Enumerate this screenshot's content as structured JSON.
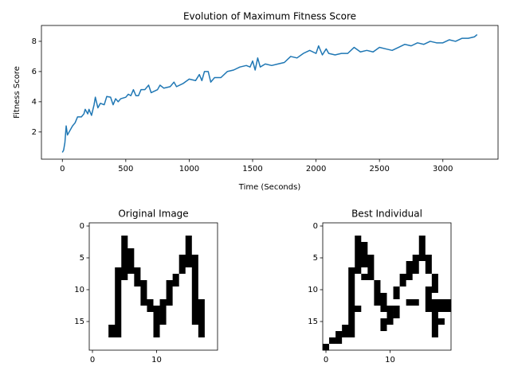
{
  "chart_data": [
    {
      "type": "line",
      "title": "Evolution of Maximum Fitness Score",
      "xlabel": "Time (Seconds)",
      "ylabel": "Fitness Score",
      "color": "#1f77b4",
      "x": [
        0,
        10,
        20,
        30,
        40,
        60,
        80,
        100,
        120,
        150,
        170,
        180,
        200,
        210,
        230,
        250,
        260,
        280,
        300,
        330,
        350,
        380,
        400,
        420,
        440,
        460,
        500,
        520,
        540,
        560,
        580,
        600,
        620,
        650,
        680,
        700,
        750,
        770,
        800,
        850,
        880,
        900,
        950,
        1000,
        1050,
        1080,
        1100,
        1120,
        1150,
        1170,
        1200,
        1250,
        1300,
        1350,
        1400,
        1450,
        1480,
        1500,
        1520,
        1540,
        1560,
        1600,
        1650,
        1700,
        1750,
        1800,
        1850,
        1900,
        1950,
        2000,
        2020,
        2050,
        2080,
        2100,
        2150,
        2200,
        2250,
        2300,
        2350,
        2400,
        2450,
        2500,
        2550,
        2600,
        2650,
        2700,
        2750,
        2800,
        2850,
        2900,
        2950,
        3000,
        3050,
        3100,
        3150,
        3200,
        3250,
        3270
      ],
      "values": [
        0.65,
        0.8,
        1.3,
        2.4,
        1.8,
        2.1,
        2.4,
        2.6,
        3.0,
        3.0,
        3.2,
        3.5,
        3.2,
        3.5,
        3.1,
        3.8,
        4.3,
        3.6,
        3.9,
        3.8,
        4.35,
        4.3,
        3.8,
        4.2,
        4.0,
        4.2,
        4.3,
        4.5,
        4.4,
        4.8,
        4.4,
        4.4,
        4.8,
        4.8,
        5.1,
        4.6,
        4.8,
        5.1,
        4.9,
        5.0,
        5.3,
        5.0,
        5.2,
        5.5,
        5.4,
        5.8,
        5.4,
        6.0,
        6.0,
        5.3,
        5.6,
        5.6,
        6.0,
        6.1,
        6.3,
        6.4,
        6.3,
        6.7,
        6.1,
        6.9,
        6.3,
        6.5,
        6.4,
        6.5,
        6.6,
        7.0,
        6.9,
        7.2,
        7.4,
        7.2,
        7.7,
        7.1,
        7.5,
        7.2,
        7.1,
        7.2,
        7.2,
        7.6,
        7.3,
        7.4,
        7.3,
        7.6,
        7.5,
        7.4,
        7.6,
        7.8,
        7.7,
        7.9,
        7.8,
        8.0,
        7.9,
        7.9,
        8.1,
        8.0,
        8.2,
        8.2,
        8.3,
        8.45
      ],
      "xlim": [
        -165,
        3435
      ],
      "ylim": [
        0.2,
        9.05
      ],
      "xticks": [
        0,
        500,
        1000,
        1500,
        2000,
        2500,
        3000
      ],
      "yticks": [
        2,
        4,
        6,
        8
      ]
    },
    {
      "type": "image",
      "title": "Original Image",
      "color": "#000000",
      "xlim": [
        -0.5,
        19.5
      ],
      "ylim": [
        19.5,
        -0.5
      ],
      "xticks": [
        0,
        10
      ],
      "yticks": [
        0,
        5,
        10,
        15
      ],
      "pixels": [
        [
          0,
          0,
          0,
          0,
          0,
          0,
          0,
          0,
          0,
          0,
          0,
          0,
          0,
          0,
          0,
          0,
          0,
          0,
          0,
          0
        ],
        [
          0,
          0,
          0,
          0,
          0,
          0,
          0,
          0,
          0,
          0,
          0,
          0,
          0,
          0,
          0,
          0,
          0,
          0,
          0,
          0
        ],
        [
          0,
          0,
          0,
          0,
          0,
          1,
          0,
          0,
          0,
          0,
          0,
          0,
          0,
          0,
          0,
          1,
          0,
          0,
          0,
          0
        ],
        [
          0,
          0,
          0,
          0,
          0,
          1,
          0,
          0,
          0,
          0,
          0,
          0,
          0,
          0,
          0,
          1,
          0,
          0,
          0,
          0
        ],
        [
          0,
          0,
          0,
          0,
          0,
          1,
          1,
          0,
          0,
          0,
          0,
          0,
          0,
          0,
          0,
          1,
          0,
          0,
          0,
          0
        ],
        [
          0,
          0,
          0,
          0,
          0,
          1,
          1,
          0,
          0,
          0,
          0,
          0,
          0,
          0,
          1,
          1,
          1,
          0,
          0,
          0
        ],
        [
          0,
          0,
          0,
          0,
          0,
          1,
          1,
          0,
          0,
          0,
          0,
          0,
          0,
          0,
          1,
          1,
          1,
          0,
          0,
          0
        ],
        [
          0,
          0,
          0,
          0,
          1,
          1,
          1,
          1,
          0,
          0,
          0,
          0,
          0,
          0,
          1,
          0,
          1,
          0,
          0,
          0
        ],
        [
          0,
          0,
          0,
          0,
          1,
          1,
          0,
          1,
          0,
          0,
          0,
          0,
          0,
          1,
          0,
          0,
          1,
          0,
          0,
          0
        ],
        [
          0,
          0,
          0,
          0,
          1,
          0,
          0,
          1,
          1,
          0,
          0,
          0,
          1,
          1,
          0,
          0,
          1,
          0,
          0,
          0
        ],
        [
          0,
          0,
          0,
          0,
          1,
          0,
          0,
          0,
          1,
          0,
          0,
          0,
          1,
          0,
          0,
          0,
          1,
          0,
          0,
          0
        ],
        [
          0,
          0,
          0,
          0,
          1,
          0,
          0,
          0,
          1,
          0,
          0,
          0,
          1,
          0,
          0,
          0,
          1,
          0,
          0,
          0
        ],
        [
          0,
          0,
          0,
          0,
          1,
          0,
          0,
          0,
          1,
          1,
          0,
          1,
          1,
          0,
          0,
          0,
          1,
          1,
          0,
          0
        ],
        [
          0,
          0,
          0,
          0,
          1,
          0,
          0,
          0,
          0,
          1,
          1,
          1,
          0,
          0,
          0,
          0,
          1,
          1,
          0,
          0
        ],
        [
          0,
          0,
          0,
          0,
          1,
          0,
          0,
          0,
          0,
          0,
          1,
          1,
          0,
          0,
          0,
          0,
          1,
          1,
          0,
          0
        ],
        [
          0,
          0,
          0,
          0,
          1,
          0,
          0,
          0,
          0,
          0,
          1,
          1,
          0,
          0,
          0,
          0,
          1,
          1,
          0,
          0
        ],
        [
          0,
          0,
          0,
          1,
          1,
          0,
          0,
          0,
          0,
          0,
          1,
          0,
          0,
          0,
          0,
          0,
          0,
          1,
          0,
          0
        ],
        [
          0,
          0,
          0,
          1,
          1,
          0,
          0,
          0,
          0,
          0,
          1,
          0,
          0,
          0,
          0,
          0,
          0,
          1,
          0,
          0
        ],
        [
          0,
          0,
          0,
          0,
          0,
          0,
          0,
          0,
          0,
          0,
          0,
          0,
          0,
          0,
          0,
          0,
          0,
          0,
          0,
          0
        ],
        [
          0,
          0,
          0,
          0,
          0,
          0,
          0,
          0,
          0,
          0,
          0,
          0,
          0,
          0,
          0,
          0,
          0,
          0,
          0,
          0
        ]
      ]
    },
    {
      "type": "image",
      "title": "Best Individual",
      "color": "#000000",
      "xlim": [
        -0.5,
        19.5
      ],
      "ylim": [
        19.5,
        -0.5
      ],
      "xticks": [
        0,
        10
      ],
      "yticks": [
        0,
        5,
        10,
        15
      ],
      "pixels": [
        [
          0,
          0,
          0,
          0,
          0,
          0,
          0,
          0,
          0,
          0,
          0,
          0,
          0,
          0,
          0,
          0,
          0,
          0,
          0,
          0
        ],
        [
          0,
          0,
          0,
          0,
          0,
          0,
          0,
          0,
          0,
          0,
          0,
          0,
          0,
          0,
          0,
          0,
          0,
          0,
          0,
          0
        ],
        [
          0,
          0,
          0,
          0,
          0,
          1,
          0,
          0,
          0,
          0,
          0,
          0,
          0,
          0,
          0,
          1,
          0,
          0,
          0,
          0
        ],
        [
          0,
          0,
          0,
          0,
          0,
          1,
          1,
          0,
          0,
          0,
          0,
          0,
          0,
          0,
          0,
          1,
          0,
          0,
          0,
          0
        ],
        [
          0,
          0,
          0,
          0,
          0,
          1,
          1,
          0,
          0,
          0,
          0,
          0,
          0,
          0,
          0,
          1,
          0,
          0,
          0,
          0
        ],
        [
          0,
          0,
          0,
          0,
          0,
          1,
          1,
          1,
          0,
          0,
          0,
          0,
          0,
          0,
          1,
          1,
          1,
          0,
          0,
          0
        ],
        [
          0,
          0,
          0,
          0,
          0,
          1,
          1,
          1,
          0,
          0,
          0,
          0,
          0,
          1,
          1,
          0,
          1,
          0,
          0,
          0
        ],
        [
          0,
          0,
          0,
          0,
          1,
          1,
          0,
          1,
          0,
          0,
          0,
          0,
          0,
          1,
          1,
          0,
          1,
          0,
          0,
          0
        ],
        [
          0,
          0,
          0,
          0,
          1,
          0,
          1,
          1,
          0,
          0,
          0,
          0,
          1,
          1,
          0,
          0,
          0,
          1,
          0,
          0
        ],
        [
          0,
          0,
          0,
          0,
          1,
          0,
          0,
          0,
          1,
          0,
          0,
          0,
          1,
          0,
          0,
          0,
          0,
          1,
          0,
          0
        ],
        [
          0,
          0,
          0,
          0,
          1,
          0,
          0,
          0,
          1,
          0,
          0,
          1,
          0,
          0,
          0,
          0,
          1,
          1,
          0,
          0
        ],
        [
          0,
          0,
          0,
          0,
          1,
          0,
          0,
          0,
          1,
          1,
          0,
          1,
          0,
          0,
          0,
          0,
          1,
          0,
          0,
          0
        ],
        [
          0,
          0,
          0,
          0,
          1,
          0,
          0,
          0,
          1,
          1,
          0,
          0,
          0,
          1,
          1,
          0,
          1,
          1,
          1,
          1
        ],
        [
          0,
          0,
          0,
          0,
          1,
          1,
          0,
          0,
          0,
          1,
          1,
          1,
          0,
          0,
          0,
          0,
          1,
          1,
          1,
          1
        ],
        [
          0,
          0,
          0,
          0,
          1,
          0,
          0,
          0,
          0,
          0,
          1,
          1,
          0,
          0,
          0,
          0,
          0,
          1,
          0,
          0
        ],
        [
          0,
          0,
          0,
          0,
          1,
          0,
          0,
          0,
          0,
          1,
          1,
          0,
          0,
          0,
          0,
          0,
          0,
          1,
          1,
          0
        ],
        [
          0,
          0,
          0,
          1,
          1,
          0,
          0,
          0,
          0,
          1,
          0,
          0,
          0,
          0,
          0,
          0,
          0,
          1,
          0,
          0
        ],
        [
          0,
          0,
          1,
          1,
          1,
          0,
          0,
          0,
          0,
          0,
          0,
          0,
          0,
          0,
          0,
          0,
          0,
          1,
          0,
          0
        ],
        [
          0,
          1,
          1,
          0,
          0,
          0,
          0,
          0,
          0,
          0,
          0,
          0,
          0,
          0,
          0,
          0,
          0,
          0,
          0,
          0
        ],
        [
          1,
          0,
          0,
          0,
          0,
          0,
          0,
          0,
          0,
          0,
          0,
          0,
          0,
          0,
          0,
          0,
          0,
          0,
          0,
          0
        ]
      ]
    }
  ]
}
